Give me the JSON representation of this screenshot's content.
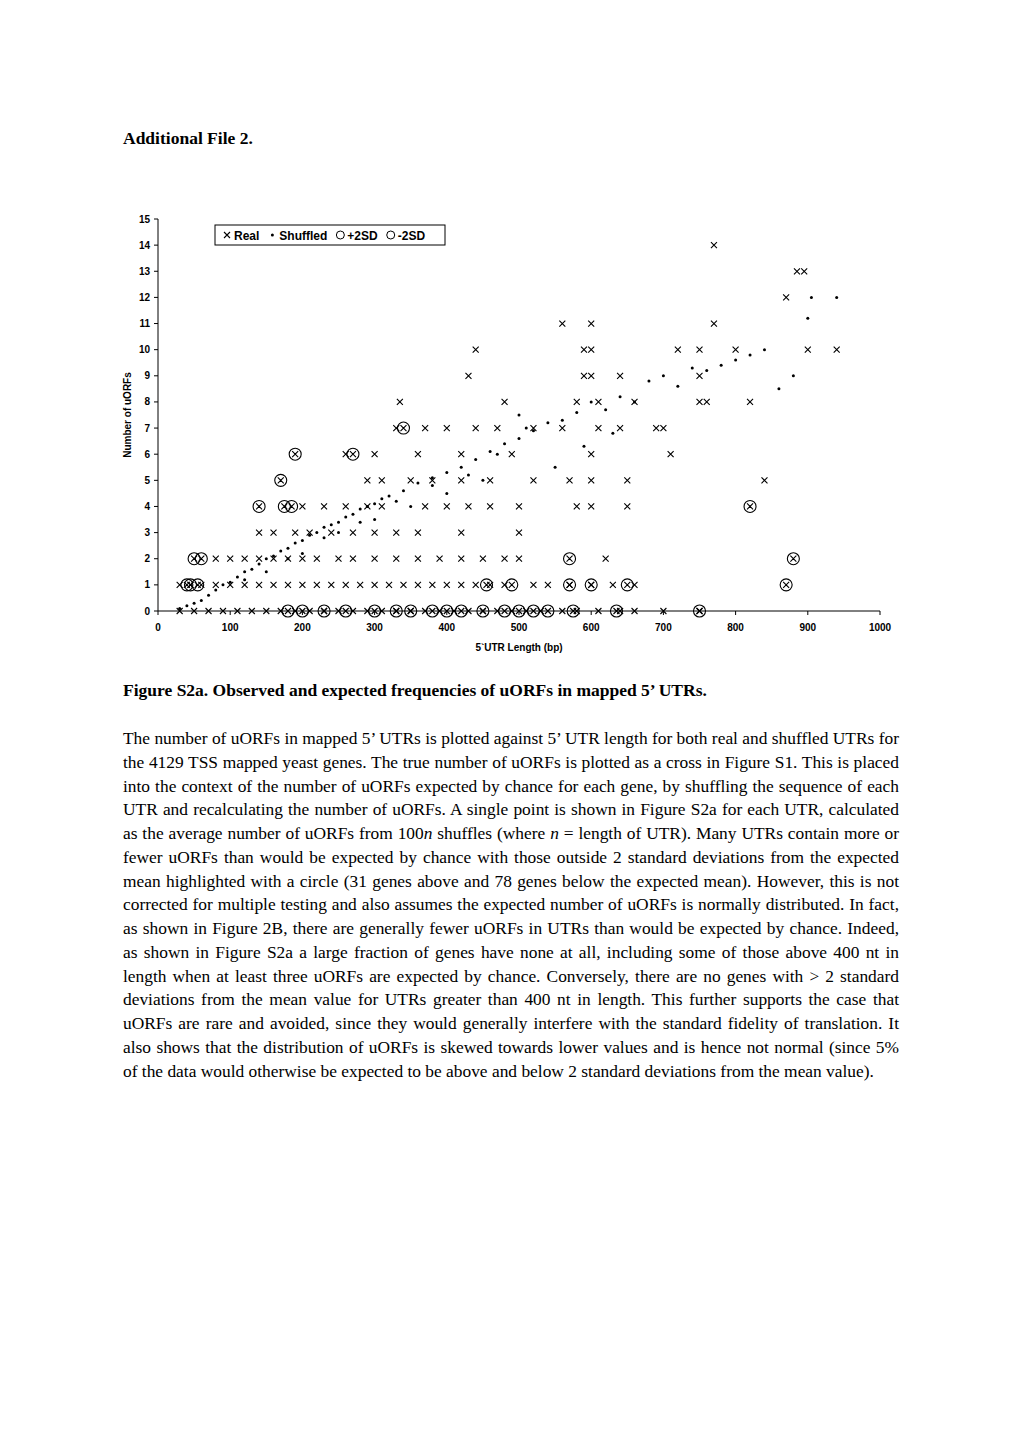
{
  "header": {
    "title": "Additional File 2."
  },
  "chart_data": {
    "type": "scatter",
    "x_label": "5`UTR Length (bp)",
    "y_label": "Number of uORFs",
    "xlim": [
      0,
      1000
    ],
    "xticks": [
      0,
      100,
      200,
      300,
      400,
      500,
      600,
      700,
      800,
      900,
      1000
    ],
    "ylim": [
      0,
      15
    ],
    "yticks": [
      0,
      1,
      2,
      3,
      4,
      5,
      6,
      7,
      8,
      9,
      10,
      11,
      12,
      13,
      14,
      15
    ],
    "legend": "top-left",
    "grid": false,
    "series": [
      {
        "name": "Real",
        "marker": "x",
        "color": "#000000",
        "x": [
          30,
          50,
          70,
          90,
          110,
          130,
          150,
          170,
          190,
          210,
          230,
          250,
          270,
          290,
          310,
          330,
          350,
          370,
          390,
          410,
          430,
          450,
          470,
          490,
          510,
          530,
          560,
          580,
          610,
          640,
          660,
          700,
          750,
          30,
          45,
          60,
          80,
          100,
          120,
          140,
          160,
          180,
          200,
          220,
          240,
          260,
          280,
          300,
          320,
          340,
          360,
          380,
          400,
          420,
          440,
          460,
          480,
          520,
          540,
          570,
          600,
          630,
          660,
          80,
          100,
          120,
          140,
          160,
          180,
          200,
          220,
          250,
          270,
          300,
          330,
          360,
          390,
          420,
          450,
          480,
          500,
          620,
          140,
          160,
          190,
          210,
          240,
          270,
          300,
          330,
          360,
          420,
          500,
          200,
          230,
          260,
          290,
          310,
          370,
          400,
          430,
          460,
          500,
          580,
          600,
          650,
          290,
          310,
          350,
          380,
          420,
          460,
          520,
          570,
          600,
          650,
          840,
          260,
          300,
          360,
          420,
          490,
          600,
          710,
          330,
          370,
          400,
          440,
          470,
          520,
          560,
          610,
          640,
          690,
          700,
          335,
          480,
          580,
          610,
          660,
          750,
          760,
          820,
          430,
          590,
          600,
          640,
          750,
          440,
          590,
          600,
          720,
          750,
          800,
          900,
          940,
          560,
          600,
          770,
          870,
          885,
          895,
          770
        ],
        "values": [
          0,
          0,
          0,
          0,
          0,
          0,
          0,
          0,
          0,
          0,
          0,
          0,
          0,
          0,
          0,
          0,
          0,
          0,
          0,
          0,
          0,
          0,
          0,
          0,
          0,
          0,
          0,
          0,
          0,
          0,
          0,
          0,
          0,
          1,
          1,
          1,
          1,
          1,
          1,
          1,
          1,
          1,
          1,
          1,
          1,
          1,
          1,
          1,
          1,
          1,
          1,
          1,
          1,
          1,
          1,
          1,
          1,
          1,
          1,
          1,
          1,
          1,
          1,
          2,
          2,
          2,
          2,
          2,
          2,
          2,
          2,
          2,
          2,
          2,
          2,
          2,
          2,
          2,
          2,
          2,
          2,
          2,
          3,
          3,
          3,
          3,
          3,
          3,
          3,
          3,
          3,
          3,
          3,
          4,
          4,
          4,
          4,
          4,
          4,
          4,
          4,
          4,
          4,
          4,
          4,
          4,
          5,
          5,
          5,
          5,
          5,
          5,
          5,
          5,
          5,
          5,
          5,
          6,
          6,
          6,
          6,
          6,
          6,
          6,
          7,
          7,
          7,
          7,
          7,
          7,
          7,
          7,
          7,
          7,
          7,
          8,
          8,
          8,
          8,
          8,
          8,
          8,
          8,
          9,
          9,
          9,
          9,
          9,
          10,
          10,
          10,
          10,
          10,
          10,
          10,
          10,
          11,
          11,
          11,
          12,
          13,
          13,
          14
        ]
      },
      {
        "name": "Shuffled",
        "marker": "dot",
        "color": "#000000",
        "x": [
          30,
          40,
          50,
          60,
          70,
          80,
          90,
          100,
          110,
          120,
          130,
          140,
          150,
          160,
          170,
          180,
          190,
          200,
          210,
          220,
          230,
          240,
          250,
          260,
          270,
          280,
          290,
          300,
          310,
          320,
          340,
          360,
          380,
          400,
          420,
          440,
          460,
          480,
          500,
          520,
          540,
          560,
          580,
          600,
          620,
          640,
          660,
          680,
          700,
          720,
          740,
          760,
          780,
          800,
          820,
          840,
          860,
          880,
          900,
          905,
          940,
          150,
          200,
          250,
          300,
          350,
          400,
          450,
          500,
          550,
          630,
          120,
          180,
          230,
          280,
          330,
          380,
          430,
          470,
          510,
          590
        ],
        "values": [
          0.1,
          0.2,
          0.3,
          0.4,
          0.6,
          0.8,
          1.0,
          1.1,
          1.3,
          1.5,
          1.6,
          1.8,
          2.0,
          2.1,
          2.3,
          2.4,
          2.6,
          2.7,
          2.9,
          3.0,
          3.2,
          3.3,
          3.4,
          3.6,
          3.7,
          3.9,
          4.0,
          4.1,
          4.3,
          4.4,
          4.6,
          4.9,
          5.1,
          5.3,
          5.5,
          5.8,
          6.1,
          6.4,
          6.6,
          6.9,
          7.2,
          7.3,
          7.6,
          8.0,
          7.7,
          8.2,
          8.0,
          8.8,
          9.0,
          8.6,
          9.3,
          9.2,
          9.4,
          9.6,
          9.8,
          10.0,
          8.5,
          9.0,
          11.2,
          12.0,
          12.0,
          1.5,
          2.2,
          3.0,
          3.5,
          4.0,
          4.5,
          5.0,
          7.5,
          5.5,
          6.8,
          1.2,
          2.0,
          2.8,
          3.4,
          4.2,
          4.8,
          5.2,
          6.0,
          7.0,
          6.3
        ]
      },
      {
        "name": "+2SD",
        "marker": "circle",
        "color": "#000000",
        "x": [
          40,
          45,
          55,
          50,
          60,
          140,
          170,
          175,
          185,
          190,
          270,
          340
        ],
        "values": [
          1,
          1,
          1,
          2,
          2,
          4,
          5,
          4,
          4,
          6,
          6,
          7
        ]
      },
      {
        "name": "-2SD",
        "marker": "circle",
        "color": "#000000",
        "x": [
          180,
          200,
          230,
          260,
          300,
          330,
          350,
          380,
          400,
          420,
          450,
          480,
          500,
          520,
          540,
          575,
          635,
          750,
          455,
          490,
          570,
          600,
          650,
          870,
          570,
          880,
          820
        ],
        "values": [
          0,
          0,
          0,
          0,
          0,
          0,
          0,
          0,
          0,
          0,
          0,
          0,
          0,
          0,
          0,
          0,
          0,
          0,
          1,
          1,
          1,
          1,
          1,
          1,
          2,
          2,
          4
        ]
      }
    ]
  },
  "caption": {
    "title": "Figure S2a. Observed and expected frequencies of uORFs in mapped 5’ UTRs.",
    "body": [
      "The number of uORFs in mapped 5’ UTRs is plotted against 5’ UTR length for both real and shuffled UTRs for the 4129 TSS mapped yeast genes. The true number of uORFs is plotted as a cross in Figure S1. This is placed into the context of the number of uORFs expected by chance for each gene, by shuffling the sequence of each UTR and recalculating the number of uORFs. A single point is shown in Figure S2a for each UTR, calculated as the average number of uORFs from 100",
      {
        "em": "n"
      },
      " shuffles (where ",
      {
        "em": "n"
      },
      " = length of UTR). Many UTRs contain more or fewer uORFs than would be expected by chance with those outside 2 standard deviations from the expected mean highlighted with a circle (31 genes above and 78 genes below the expected mean). However, this is not corrected for multiple testing and also assumes the expected number of uORFs is normally distributed. In fact, as shown in Figure 2B, there are generally fewer uORFs in UTRs than would be expected by chance. Indeed, as shown in Figure S2a a large fraction of genes have none at all, including some of those above 400 nt in length when at least three uORFs are expected by chance. Conversely, there are no genes with > 2 standard deviations from the mean value for UTRs greater than 400 nt in length. This further supports the case that uORFs are rare and avoided, since they would generally interfere with the standard fidelity of translation. It also shows that the distribution of uORFs is skewed towards lower values and is hence not normal (since 5% of the data would otherwise be expected to be above and below 2 standard deviations from the mean value)."
    ]
  }
}
